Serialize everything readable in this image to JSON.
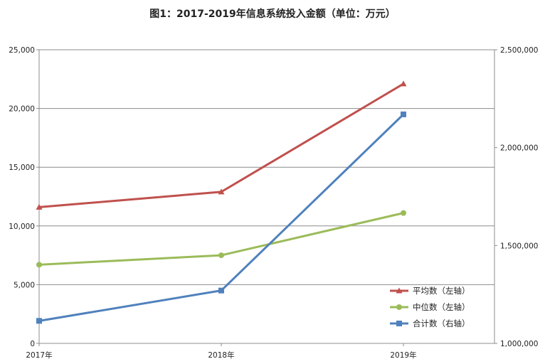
{
  "chart_data": {
    "type": "line",
    "title": "图1：2017-2019年信息系统投入金额（单位：万元）",
    "categories": [
      "2017年",
      "2018年",
      "2019年"
    ],
    "y_left": {
      "min": 0,
      "max": 25000,
      "step": 5000,
      "tick_labels": [
        "0",
        "5,000",
        "10,000",
        "15,000",
        "20,000",
        "25,000"
      ]
    },
    "y_right": {
      "min": 1000000,
      "max": 2500000,
      "step": 500000,
      "tick_labels": [
        "1,000,000",
        "1,500,000",
        "2,000,000",
        "2,500,000"
      ]
    },
    "grid": true,
    "legend_position": "bottom-right",
    "series": [
      {
        "name": "平均数（左轴）",
        "axis": "left",
        "color": "#C0504D",
        "marker": "triangle",
        "values": [
          11600,
          12900,
          22100
        ]
      },
      {
        "name": "中位数（左轴）",
        "axis": "left",
        "color": "#9BBB59",
        "marker": "circle",
        "values": [
          6700,
          7500,
          11100
        ]
      },
      {
        "name": "合计数（右轴）",
        "axis": "right",
        "color": "#4F81BD",
        "marker": "square",
        "values": [
          1115000,
          1270000,
          2170000
        ]
      }
    ]
  }
}
